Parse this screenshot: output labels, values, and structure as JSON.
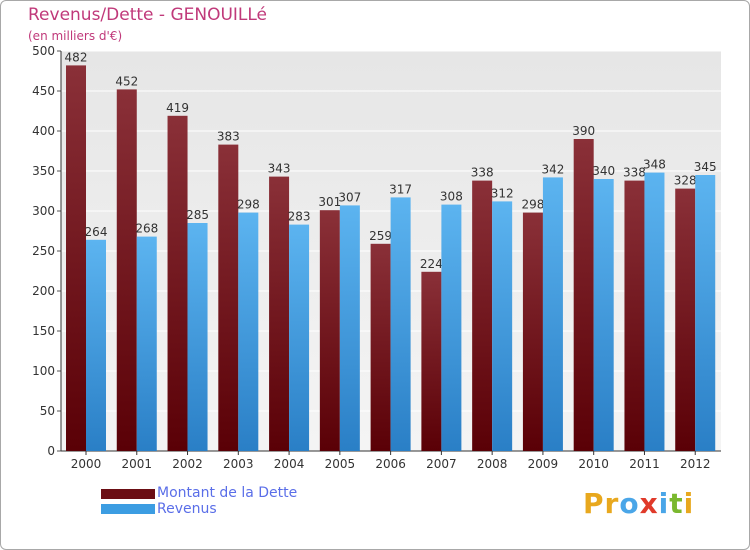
{
  "header": {
    "title": "Revenus/Dette - GENOUILLé",
    "subtitle": "(en milliers d'€)"
  },
  "chart_data": {
    "type": "bar",
    "title": "Revenus/Dette - GENOUILLé",
    "ylabel": "(en milliers d'€)",
    "xlabel": "",
    "ylim": [
      0,
      500
    ],
    "yticks": [
      0,
      50,
      100,
      150,
      200,
      250,
      300,
      350,
      400,
      450,
      500
    ],
    "grid": true,
    "categories": [
      "2000",
      "2001",
      "2002",
      "2003",
      "2004",
      "2005",
      "2006",
      "2007",
      "2008",
      "2009",
      "2010",
      "2011",
      "2012"
    ],
    "series": [
      {
        "name": "Montant de la Dette",
        "color": "#7a1f26",
        "values": [
          482,
          452,
          419,
          383,
          343,
          301,
          259,
          224,
          338,
          298,
          390,
          338,
          328
        ]
      },
      {
        "name": "Revenus",
        "color": "#4aa6e8",
        "values": [
          264,
          268,
          285,
          298,
          283,
          307,
          317,
          308,
          312,
          342,
          340,
          348,
          345
        ]
      }
    ],
    "legend": "bottom-left"
  },
  "legend": {
    "items": [
      {
        "label": "Montant de la Dette",
        "color": "#6b0e14"
      },
      {
        "label": "Revenus",
        "color": "#3c9de2"
      }
    ]
  },
  "logo": {
    "text": "Proxiti",
    "letters": [
      {
        "ch": "P",
        "color": "#e8a81e"
      },
      {
        "ch": "r",
        "color": "#e8a81e"
      },
      {
        "ch": "o",
        "color": "#4aa6e8"
      },
      {
        "ch": "x",
        "color": "#e03a2a"
      },
      {
        "ch": "i",
        "color": "#4aa6e8"
      },
      {
        "ch": "t",
        "color": "#7ab82e"
      },
      {
        "ch": "i",
        "color": "#e8a81e"
      }
    ]
  }
}
